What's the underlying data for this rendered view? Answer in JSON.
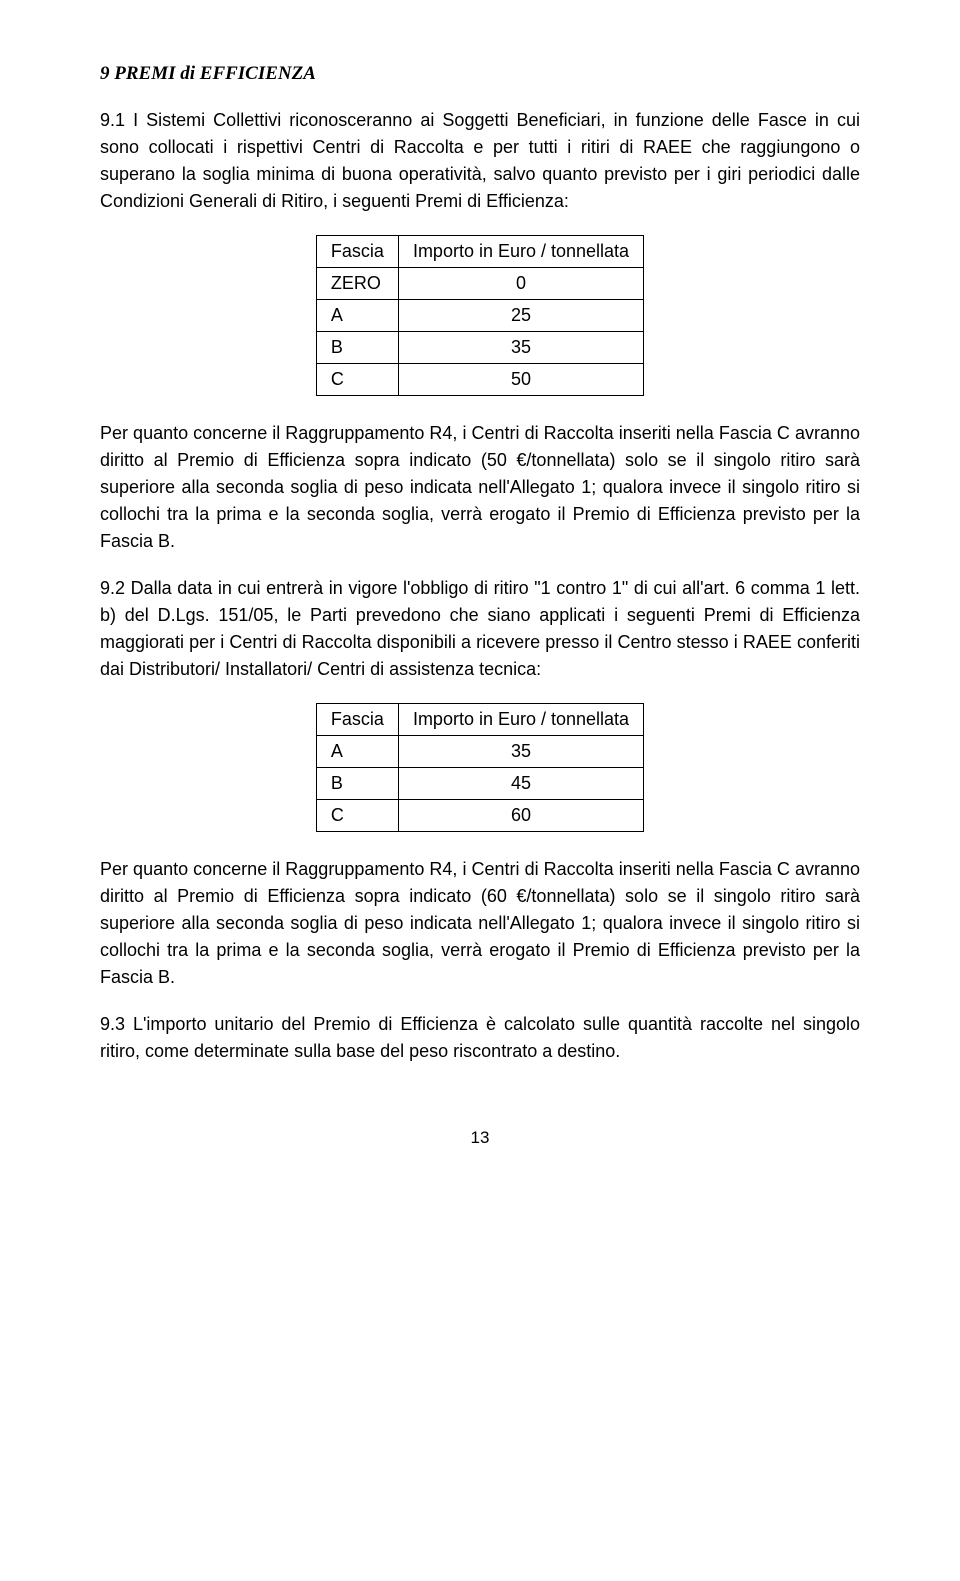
{
  "heading": "9  PREMI di EFFICIENZA",
  "para1": "9.1 I Sistemi Collettivi riconosceranno ai Soggetti Beneficiari, in funzione delle Fasce in cui sono collocati i rispettivi Centri di Raccolta e per tutti i ritiri di RAEE che raggiungono o superano la soglia minima di buona operatività, salvo quanto previsto per i giri periodici dalle Condizioni Generali di Ritiro, i seguenti Premi di Efficienza:",
  "table1": {
    "col1": "Fascia",
    "col2": "Importo in Euro / tonnellata",
    "rows": [
      {
        "fascia": "ZERO",
        "importo": "0"
      },
      {
        "fascia": "A",
        "importo": "25"
      },
      {
        "fascia": "B",
        "importo": "35"
      },
      {
        "fascia": "C",
        "importo": "50"
      }
    ]
  },
  "para2": "Per quanto concerne il Raggruppamento R4, i Centri di Raccolta inseriti nella Fascia C avranno diritto al Premio di Efficienza sopra indicato (50 €/tonnellata) solo se il singolo ritiro sarà superiore alla seconda soglia di peso indicata nell'Allegato 1; qualora invece il singolo ritiro si collochi tra la prima e la seconda soglia, verrà erogato il Premio di Efficienza previsto per la Fascia B.",
  "para3": "9.2 Dalla data in cui entrerà in vigore l'obbligo di ritiro \"1 contro 1\" di cui all'art. 6 comma 1 lett. b) del D.Lgs. 151/05, le Parti prevedono che siano applicati i seguenti Premi di Efficienza maggiorati per i Centri di Raccolta disponibili a ricevere presso il Centro stesso i RAEE conferiti dai Distributori/ Installatori/ Centri di assistenza tecnica:",
  "table2": {
    "col1": "Fascia",
    "col2": "Importo in Euro / tonnellata",
    "rows": [
      {
        "fascia": "A",
        "importo": "35"
      },
      {
        "fascia": "B",
        "importo": "45"
      },
      {
        "fascia": "C",
        "importo": "60"
      }
    ]
  },
  "para4": "Per quanto concerne il Raggruppamento R4, i Centri di Raccolta inseriti nella Fascia C avranno diritto al Premio di Efficienza sopra indicato (60 €/tonnellata) solo se il singolo ritiro sarà superiore alla seconda soglia di peso indicata nell'Allegato 1; qualora invece il singolo ritiro si collochi tra la prima e la seconda soglia, verrà erogato il Premio di Efficienza previsto per la Fascia B.",
  "para5": "9.3 L'importo unitario del Premio di Efficienza è calcolato sulle quantità raccolte nel singolo ritiro, come determinate sulla base del peso riscontrato a destino.",
  "pagenum": "13"
}
